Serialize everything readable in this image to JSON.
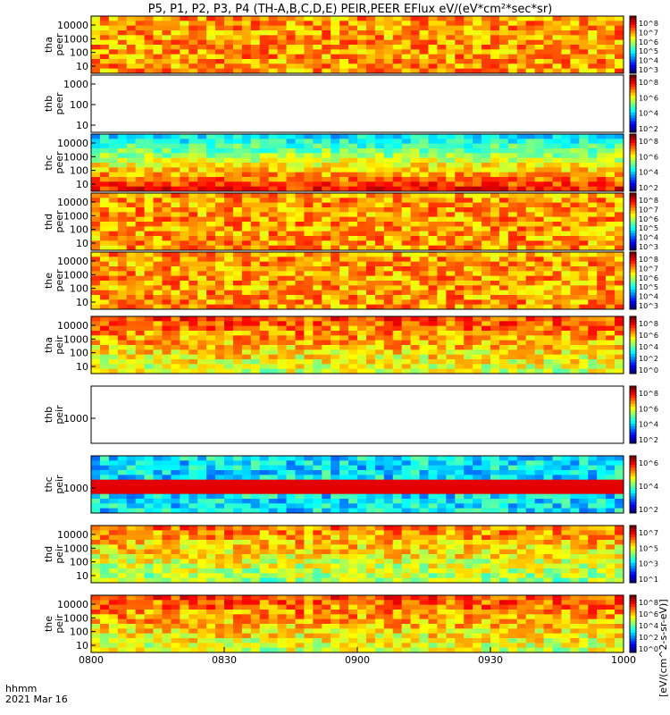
{
  "chart_data": {
    "type": "heatmap",
    "title": "P5, P1, P2, P3, P4 (TH-A,B,C,D,E) PEIR,PEER EFlux eV/(eV*cm²*sec*sr)",
    "time_label_line1": "hhmm",
    "time_label_line2": "2021 Mar 16",
    "x_ticks": [
      "0800",
      "0830",
      "0900",
      "0930",
      "1000"
    ],
    "x_range": [
      "0800",
      "1000"
    ],
    "colorbar_unit": "[eV/(cm^2-s-sr-eV)]",
    "panels": [
      {
        "id": "tha-peer",
        "label1": "tha",
        "label2": "peer",
        "y_ticks": [
          "10000",
          "1000",
          "100",
          "10"
        ],
        "log_y": true,
        "colorbar_ticks": [
          "10^8",
          "10^7",
          "10^6",
          "10^5",
          "10^4",
          "10^3"
        ],
        "mean_level": 0.72,
        "has_data": true
      },
      {
        "id": "thb-peer",
        "label1": "thb",
        "label2": "peer",
        "y_ticks": [
          "1000",
          "100",
          "10"
        ],
        "log_y": true,
        "colorbar_ticks": [
          "10^8",
          "10^6",
          "10^4",
          "10^2"
        ],
        "mean_level": 0.0,
        "has_data": false
      },
      {
        "id": "thc-peer",
        "label1": "thc",
        "label2": "peer",
        "y_ticks": [
          "10000",
          "1000",
          "100",
          "10"
        ],
        "log_y": true,
        "colorbar_ticks": [
          "10^8",
          "10^6",
          "10^4",
          "10^2"
        ],
        "mean_level": 0.45,
        "has_data": true
      },
      {
        "id": "thd-peer",
        "label1": "thd",
        "label2": "peer",
        "y_ticks": [
          "10000",
          "1000",
          "100",
          "10"
        ],
        "log_y": true,
        "colorbar_ticks": [
          "10^8",
          "10^7",
          "10^6",
          "10^5",
          "10^4",
          "10^3"
        ],
        "mean_level": 0.72,
        "has_data": true
      },
      {
        "id": "the-peer",
        "label1": "the",
        "label2": "peer",
        "y_ticks": [
          "10000",
          "1000",
          "100",
          "10"
        ],
        "log_y": true,
        "colorbar_ticks": [
          "10^8",
          "10^7",
          "10^6",
          "10^5",
          "10^4",
          "10^3"
        ],
        "mean_level": 0.72,
        "has_data": true
      },
      {
        "id": "tha-peir",
        "label1": "tha",
        "label2": "peir",
        "y_ticks": [
          "10000",
          "1000",
          "100",
          "10"
        ],
        "log_y": true,
        "colorbar_ticks": [
          "10^8",
          "10^6",
          "10^4",
          "10^2",
          "10^0"
        ],
        "mean_level": 0.55,
        "has_data": true
      },
      {
        "id": "thb-peir",
        "label1": "thb",
        "label2": "peir",
        "y_ticks": [
          "1000"
        ],
        "log_y": true,
        "colorbar_ticks": [
          "10^8",
          "10^6",
          "10^4",
          "10^2"
        ],
        "mean_level": 0.0,
        "has_data": false
      },
      {
        "id": "thc-peir",
        "label1": "thc",
        "label2": "peir",
        "y_ticks": [
          "1000"
        ],
        "log_y": true,
        "colorbar_ticks": [
          "10^6",
          "10^4",
          "10^2"
        ],
        "mean_level": 0.5,
        "has_data": true
      },
      {
        "id": "thd-peir",
        "label1": "thd",
        "label2": "peir",
        "y_ticks": [
          "10000",
          "1000",
          "100",
          "10"
        ],
        "log_y": true,
        "colorbar_ticks": [
          "10^7",
          "10^5",
          "10^3",
          "10^1"
        ],
        "mean_level": 0.5,
        "has_data": true
      },
      {
        "id": "the-peir",
        "label1": "the",
        "label2": "peir",
        "y_ticks": [
          "10000",
          "1000",
          "100",
          "10"
        ],
        "log_y": true,
        "colorbar_ticks": [
          "10^8",
          "10^6",
          "10^4",
          "10^2",
          "10^0"
        ],
        "mean_level": 0.55,
        "has_data": true
      }
    ]
  }
}
